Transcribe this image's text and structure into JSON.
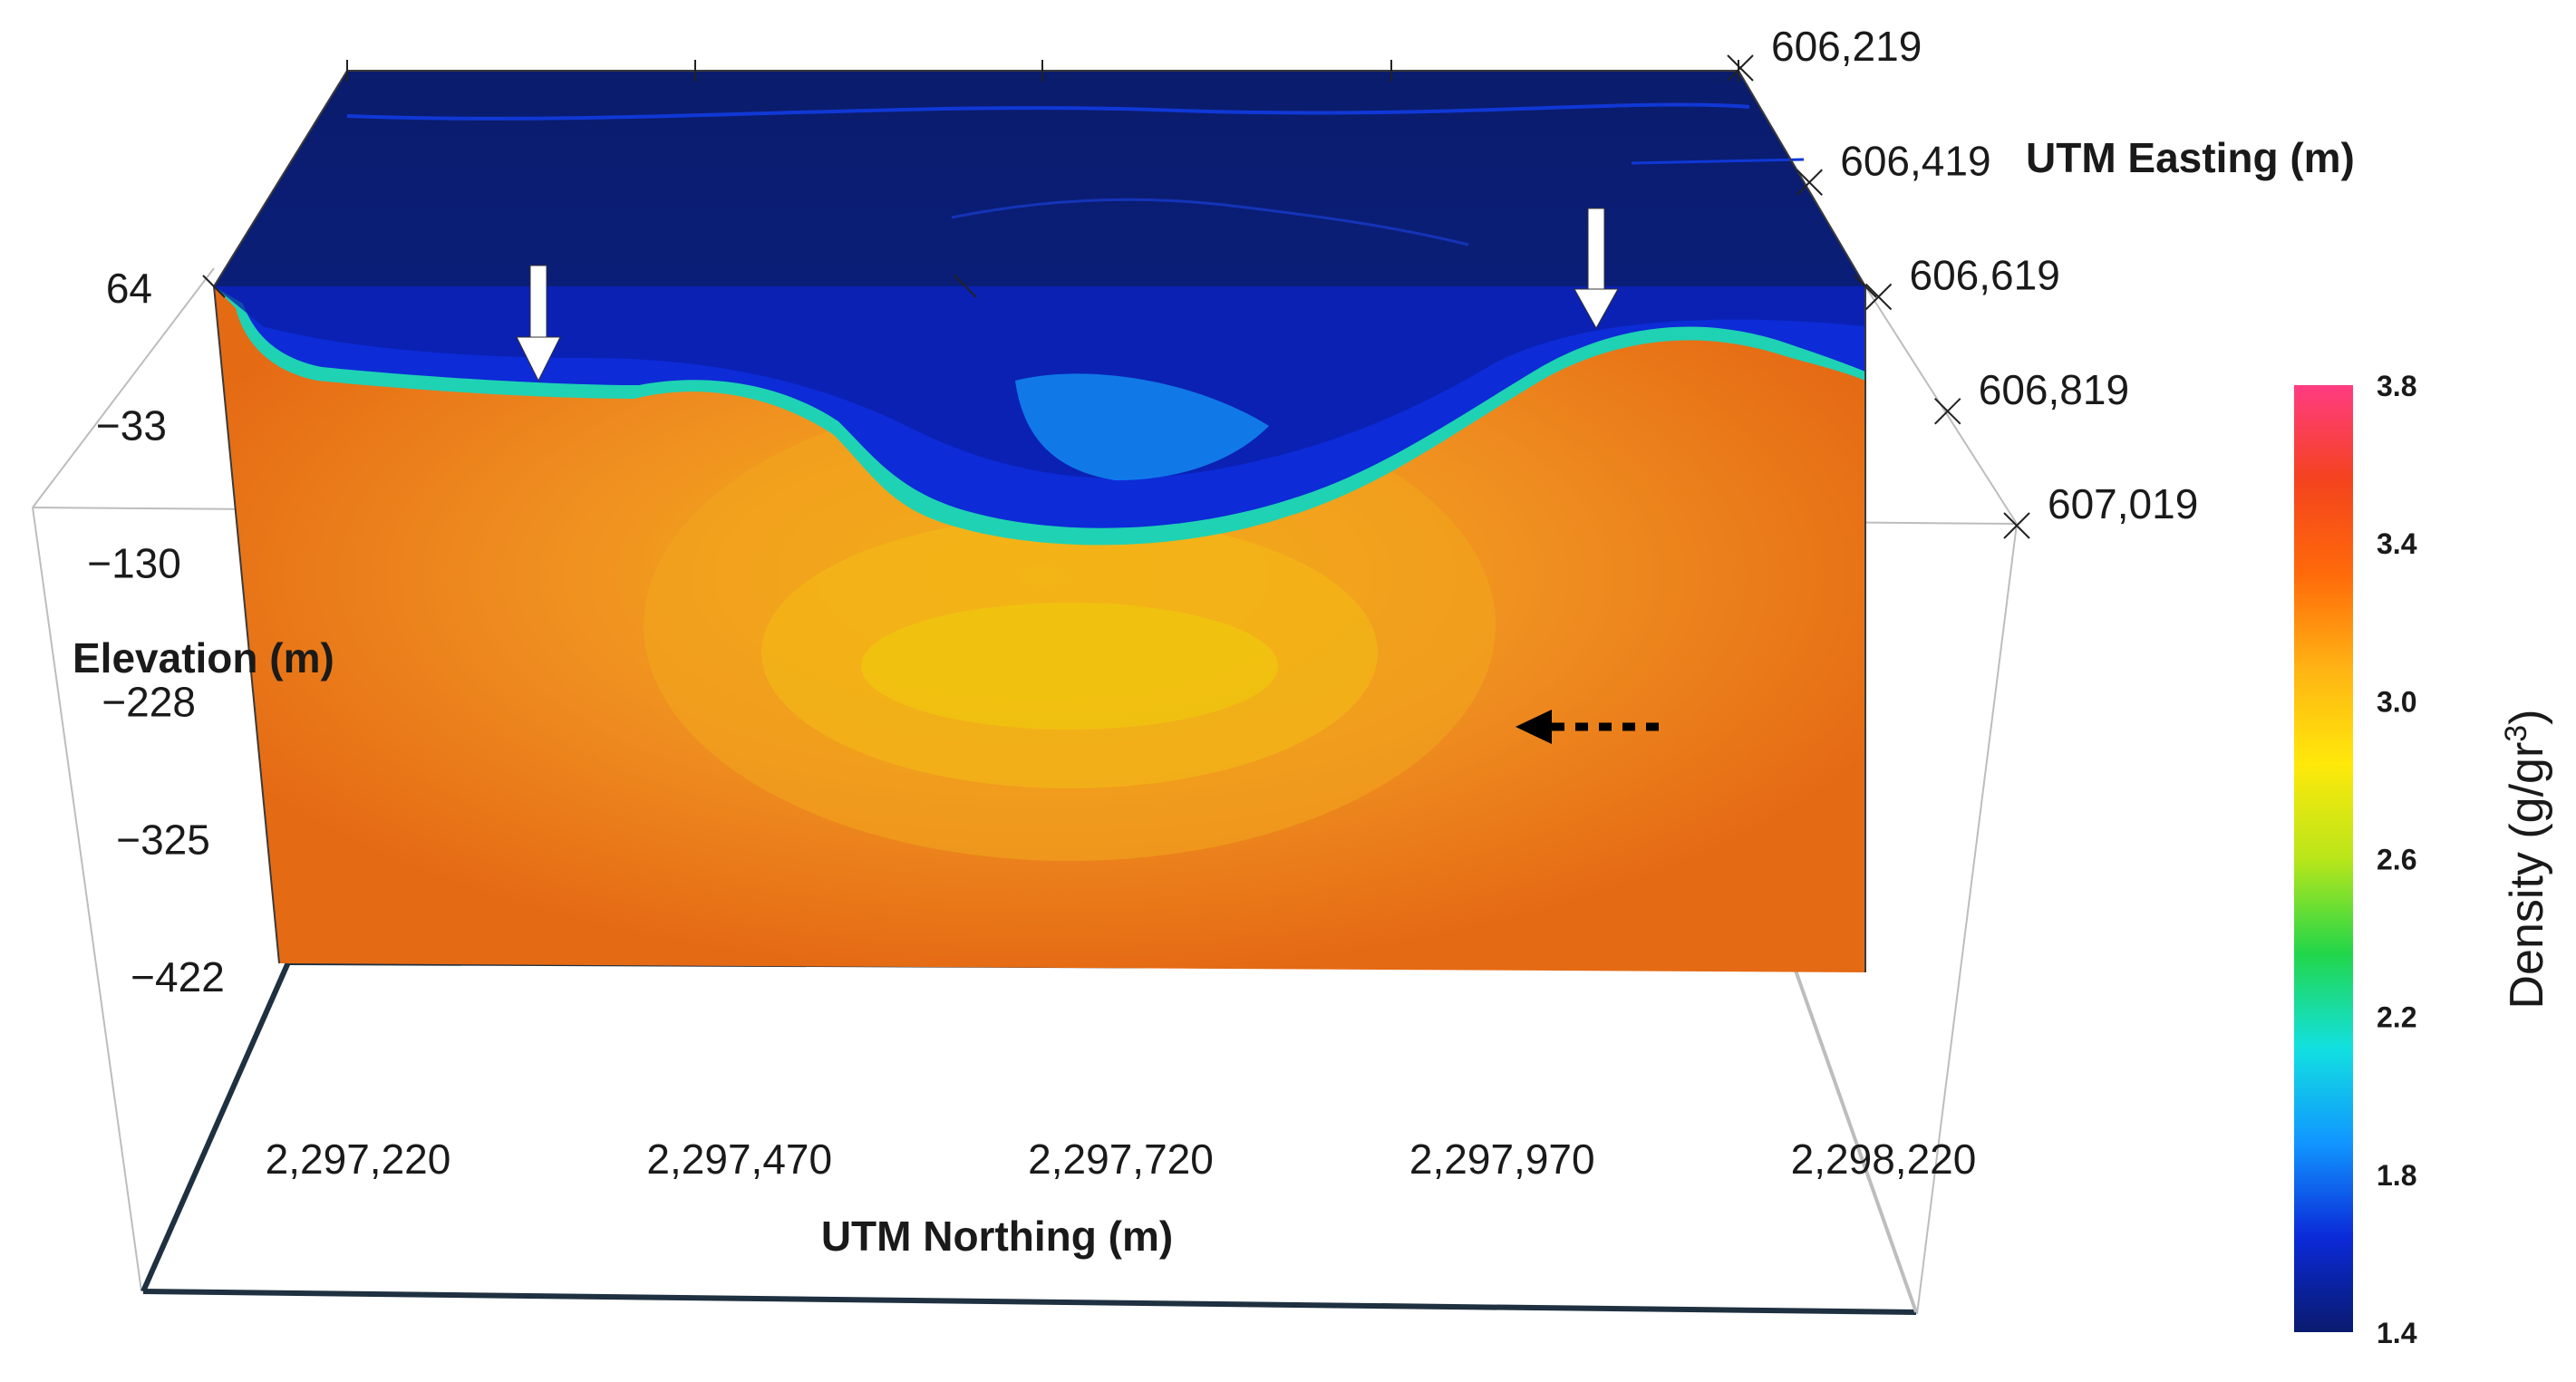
{
  "chart_data": {
    "type": "heatmap",
    "title": "",
    "xlabel": "UTM Northing (m)",
    "ylabel": "Elevation (m)",
    "zlabel": "UTM Easting (m)",
    "northing_ticks": [
      "2,297,220",
      "2,297,470",
      "2,297,720",
      "2,297,970",
      "2,298,220"
    ],
    "northing_values": [
      2297220,
      2297470,
      2297720,
      2297970,
      2298220
    ],
    "elevation_ticks": [
      "64",
      "−33",
      "−130",
      "−228",
      "−325",
      "−422"
    ],
    "elevation_values": [
      64,
      -33,
      -130,
      -228,
      -325,
      -422
    ],
    "easting_ticks": [
      "606,219",
      "606,419",
      "606,619",
      "606,819",
      "607,019"
    ],
    "easting_values": [
      606219,
      606419,
      606619,
      606819,
      607019
    ],
    "xlim": [
      2297220,
      2298220
    ],
    "ylim": [
      -422,
      64
    ],
    "colorbar": {
      "title_main": "Density (g/gr",
      "title_sup": "3",
      "title_end": ")",
      "ticks": [
        "1.4",
        "1.8",
        "2.2",
        "2.6",
        "3.0",
        "3.4",
        "3.8"
      ],
      "values": [
        1.4,
        1.8,
        2.2,
        2.6,
        3.0,
        3.4,
        3.8
      ],
      "range": [
        1.4,
        3.8
      ],
      "colors": [
        "#0a1a6e",
        "#0b2ad8",
        "#1196ff",
        "#12e0e0",
        "#22d64a",
        "#b9e61a",
        "#ffe80a",
        "#ffb414",
        "#ff6a0a",
        "#f4431e",
        "#ff3c82"
      ]
    },
    "density_body": {
      "background": 3.35,
      "near_surface_min": 1.55,
      "near_surface_max": 2.3,
      "body_core": 3.0,
      "body_rim": 3.15
    },
    "annotations": [
      {
        "type": "solid-arrow-down",
        "color": "#ffffff"
      },
      {
        "type": "solid-arrow-down",
        "color": "#ffffff"
      },
      {
        "type": "dashed-arrow-left",
        "color": "#000000"
      }
    ]
  }
}
